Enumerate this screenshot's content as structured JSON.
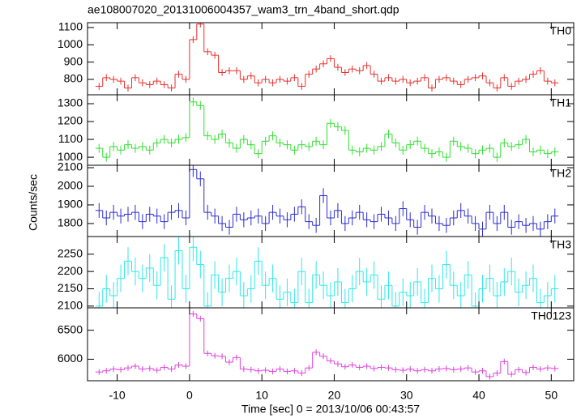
{
  "title": "ae108007020_20131006004357_wam3_trn_4band_short.qdp",
  "xlabel": "Time [sec] 0 = 2013/10/06 00:43:57",
  "ylabel": "Counts/sec",
  "xlim": [
    -14.1,
    53.1
  ],
  "xticks": [
    -10,
    0,
    10,
    20,
    30,
    40,
    50
  ],
  "chart_data": [
    {
      "type": "step",
      "name": "TH0",
      "color": "#e8302c",
      "error": 20,
      "ylim": [
        711,
        1128
      ],
      "yticks": [
        800,
        900,
        1000,
        1100
      ],
      "x": [
        -12.5,
        -11.5,
        -10.5,
        -9.5,
        -8.5,
        -7.5,
        -6.5,
        -5.5,
        -4.5,
        -3.5,
        -2.5,
        -1.5,
        -0.5,
        0.5,
        1.5,
        2.5,
        3.5,
        4.5,
        5.5,
        6.5,
        7.5,
        8.5,
        9.5,
        10.5,
        11.5,
        12.5,
        13.5,
        14.5,
        15.5,
        16.5,
        17.5,
        18.5,
        19.5,
        20.5,
        21.5,
        22.5,
        23.5,
        24.5,
        25.5,
        26.5,
        27.5,
        28.5,
        29.5,
        30.5,
        31.5,
        32.5,
        33.5,
        34.5,
        35.5,
        36.5,
        37.5,
        38.5,
        39.5,
        40.5,
        41.5,
        42.5,
        43.5,
        44.5,
        45.5,
        46.5,
        47.5,
        48.5,
        49.5,
        50.5
      ],
      "values": [
        760,
        810,
        800,
        790,
        750,
        810,
        780,
        770,
        790,
        770,
        750,
        830,
        800,
        1030,
        1120,
        960,
        940,
        840,
        850,
        850,
        800,
        820,
        780,
        800,
        780,
        800,
        790,
        810,
        760,
        830,
        860,
        890,
        920,
        870,
        840,
        860,
        850,
        880,
        830,
        790,
        810,
        790,
        800,
        780,
        790,
        810,
        750,
        800,
        810,
        790,
        770,
        800,
        810,
        820,
        780,
        750,
        810,
        760,
        790,
        800,
        830,
        850,
        790,
        780
      ]
    },
    {
      "type": "step",
      "name": "TH1",
      "color": "#2ee02e",
      "error": 25,
      "ylim": [
        955,
        1350
      ],
      "yticks": [
        1000,
        1100,
        1200,
        1300
      ],
      "x": [
        -12.5,
        -11.5,
        -10.5,
        -9.5,
        -8.5,
        -7.5,
        -6.5,
        -5.5,
        -4.5,
        -3.5,
        -2.5,
        -1.5,
        -0.5,
        0.5,
        1.5,
        2.5,
        3.5,
        4.5,
        5.5,
        6.5,
        7.5,
        8.5,
        9.5,
        10.5,
        11.5,
        12.5,
        13.5,
        14.5,
        15.5,
        16.5,
        17.5,
        18.5,
        19.5,
        20.5,
        21.5,
        22.5,
        23.5,
        24.5,
        25.5,
        26.5,
        27.5,
        28.5,
        29.5,
        30.5,
        31.5,
        32.5,
        33.5,
        34.5,
        35.5,
        36.5,
        37.5,
        38.5,
        39.5,
        40.5,
        41.5,
        42.5,
        43.5,
        44.5,
        45.5,
        46.5,
        47.5,
        48.5,
        49.5,
        50.5
      ],
      "values": [
        1050,
        1000,
        1060,
        1040,
        1070,
        1050,
        1060,
        1040,
        1080,
        1100,
        1080,
        1100,
        1110,
        1310,
        1290,
        1120,
        1100,
        1130,
        1080,
        1050,
        1100,
        1070,
        1020,
        1090,
        1120,
        1080,
        1070,
        1040,
        1070,
        1060,
        1090,
        1070,
        1190,
        1170,
        1150,
        1040,
        1030,
        1050,
        1040,
        1060,
        1130,
        1080,
        1040,
        1070,
        1090,
        1050,
        1020,
        1030,
        1000,
        1090,
        1060,
        1050,
        1020,
        1040,
        1050,
        1000,
        1080,
        1060,
        1070,
        1100,
        1030,
        1040,
        1020,
        1030
      ]
    },
    {
      "type": "step",
      "name": "TH2",
      "color": "#2c2cd0",
      "error": 40,
      "ylim": [
        1730,
        2113
      ],
      "yticks": [
        1800,
        1900,
        2000,
        2100
      ],
      "x": [
        -12.5,
        -11.5,
        -10.5,
        -9.5,
        -8.5,
        -7.5,
        -6.5,
        -5.5,
        -4.5,
        -3.5,
        -2.5,
        -1.5,
        -0.5,
        0.5,
        1.5,
        2.5,
        3.5,
        4.5,
        5.5,
        6.5,
        7.5,
        8.5,
        9.5,
        10.5,
        11.5,
        12.5,
        13.5,
        14.5,
        15.5,
        16.5,
        17.5,
        18.5,
        19.5,
        20.5,
        21.5,
        22.5,
        23.5,
        24.5,
        25.5,
        26.5,
        27.5,
        28.5,
        29.5,
        30.5,
        31.5,
        32.5,
        33.5,
        34.5,
        35.5,
        36.5,
        37.5,
        38.5,
        39.5,
        40.5,
        41.5,
        42.5,
        43.5,
        44.5,
        45.5,
        46.5,
        47.5,
        48.5,
        49.5,
        50.5
      ],
      "values": [
        1870,
        1830,
        1860,
        1840,
        1850,
        1860,
        1810,
        1850,
        1840,
        1810,
        1860,
        1870,
        1830,
        2090,
        2040,
        1860,
        1840,
        1800,
        1780,
        1850,
        1820,
        1830,
        1840,
        1800,
        1860,
        1840,
        1820,
        1850,
        1890,
        1810,
        1790,
        1950,
        1830,
        1870,
        1800,
        1830,
        1860,
        1820,
        1810,
        1850,
        1830,
        1800,
        1880,
        1820,
        1780,
        1860,
        1840,
        1800,
        1790,
        1830,
        1870,
        1840,
        1800,
        1770,
        1860,
        1800,
        1860,
        1780,
        1810,
        1790,
        1800,
        1770,
        1810,
        1840
      ]
    },
    {
      "type": "step",
      "name": "TH3",
      "color": "#2ee8e8",
      "error": 40,
      "ylim": [
        2095,
        2301
      ],
      "yticks": [
        2100,
        2150,
        2200,
        2250
      ],
      "x": [
        -12.5,
        -11.5,
        -10.5,
        -9.5,
        -8.5,
        -7.5,
        -6.5,
        -5.5,
        -4.5,
        -3.5,
        -2.5,
        -1.5,
        -0.5,
        0.5,
        1.5,
        2.5,
        3.5,
        4.5,
        5.5,
        6.5,
        7.5,
        8.5,
        9.5,
        10.5,
        11.5,
        12.5,
        13.5,
        14.5,
        15.5,
        16.5,
        17.5,
        18.5,
        19.5,
        20.5,
        21.5,
        22.5,
        23.5,
        24.5,
        25.5,
        26.5,
        27.5,
        28.5,
        29.5,
        30.5,
        31.5,
        32.5,
        33.5,
        34.5,
        35.5,
        36.5,
        37.5,
        38.5,
        39.5,
        40.5,
        41.5,
        42.5,
        43.5,
        44.5,
        45.5,
        46.5,
        47.5,
        48.5,
        49.5,
        50.5
      ],
      "values": [
        2100,
        2150,
        2130,
        2180,
        2230,
        2200,
        2180,
        2210,
        2160,
        2240,
        2120,
        2260,
        2150,
        2270,
        2220,
        2100,
        2190,
        2140,
        2180,
        2200,
        2130,
        2150,
        2230,
        2160,
        2180,
        2120,
        2140,
        2110,
        2200,
        2110,
        2190,
        2160,
        2130,
        2170,
        2110,
        2150,
        2200,
        2170,
        2190,
        2120,
        2160,
        2100,
        2140,
        2130,
        2170,
        2110,
        2180,
        2150,
        2220,
        2160,
        2130,
        2190,
        2100,
        2150,
        2180,
        2130,
        2170,
        2200,
        2140,
        2160,
        2180,
        2110,
        2130,
        2150
      ]
    },
    {
      "type": "step",
      "name": "TH0123",
      "color": "#e040e0",
      "error": 50,
      "ylim": [
        5629,
        6886
      ],
      "yticks": [
        6000,
        6500
      ],
      "x": [
        -12.5,
        -11.5,
        -10.5,
        -9.5,
        -8.5,
        -7.5,
        -6.5,
        -5.5,
        -4.5,
        -3.5,
        -2.5,
        -1.5,
        -0.5,
        0.5,
        1.5,
        2.5,
        3.5,
        4.5,
        5.5,
        6.5,
        7.5,
        8.5,
        9.5,
        10.5,
        11.5,
        12.5,
        13.5,
        14.5,
        15.5,
        16.5,
        17.5,
        18.5,
        19.5,
        20.5,
        21.5,
        22.5,
        23.5,
        24.5,
        25.5,
        26.5,
        27.5,
        28.5,
        29.5,
        30.5,
        31.5,
        32.5,
        33.5,
        34.5,
        35.5,
        36.5,
        37.5,
        38.5,
        39.5,
        40.5,
        41.5,
        42.5,
        43.5,
        44.5,
        45.5,
        46.5,
        47.5,
        48.5,
        49.5,
        50.5
      ],
      "values": [
        5780,
        5800,
        5830,
        5820,
        5850,
        5880,
        5830,
        5840,
        5810,
        5860,
        5830,
        5900,
        5880,
        6780,
        6700,
        6100,
        6060,
        6050,
        5950,
        6030,
        5830,
        5820,
        5800,
        5810,
        5790,
        5830,
        5790,
        5800,
        5760,
        5850,
        6120,
        6050,
        5970,
        5920,
        5870,
        5900,
        5860,
        5880,
        5840,
        5860,
        5850,
        5820,
        5810,
        5830,
        5800,
        5820,
        5800,
        5830,
        5840,
        5820,
        5830,
        5850,
        5780,
        5800,
        5700,
        5760,
        5960,
        5740,
        5820,
        5770,
        5860,
        5830,
        5850,
        5840
      ]
    }
  ]
}
